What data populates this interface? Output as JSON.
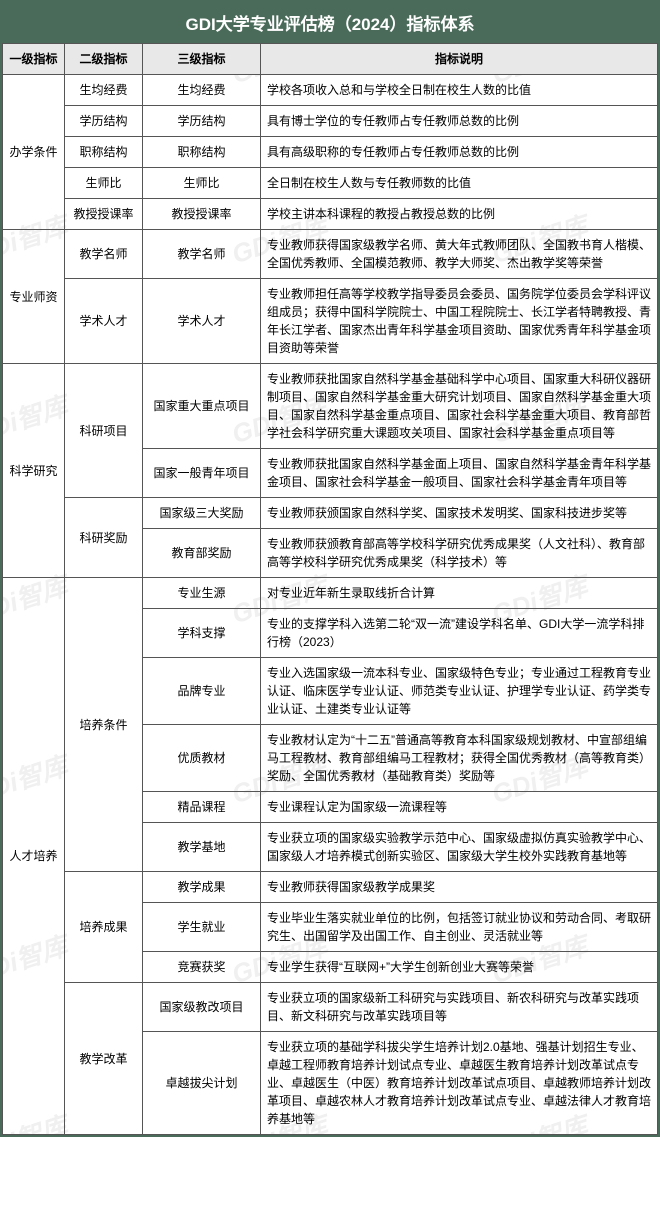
{
  "title": "GDI大学专业评估榜（2024）指标体系",
  "watermark_text": "GDi智库",
  "colors": {
    "header_bg": "#4a6b5a",
    "header_text": "#ffffff",
    "th_bg": "#e8e8e8",
    "border": "#555555",
    "watermark": "rgba(140,140,140,0.13)"
  },
  "headers": {
    "h1": "一级指标",
    "h2": "二级指标",
    "h3": "三级指标",
    "h4": "指标说明"
  },
  "rows": [
    {
      "l1": "办学条件",
      "l1_span": 5,
      "l2": "生均经费",
      "l2_span": 1,
      "l3": "生均经费",
      "desc": "学校各项收入总和与学校全日制在校生人数的比值"
    },
    {
      "l2": "学历结构",
      "l2_span": 1,
      "l3": "学历结构",
      "desc": "具有博士学位的专任教师占专任教师总数的比例"
    },
    {
      "l2": "职称结构",
      "l2_span": 1,
      "l3": "职称结构",
      "desc": "具有高级职称的专任教师占专任教师总数的比例"
    },
    {
      "l2": "生师比",
      "l2_span": 1,
      "l3": "生师比",
      "desc": "全日制在校生人数与专任教师数的比值"
    },
    {
      "l2": "教授授课率",
      "l2_span": 1,
      "l3": "教授授课率",
      "desc": "学校主讲本科课程的教授占教授总数的比例"
    },
    {
      "l1": "专业师资",
      "l1_span": 2,
      "l2": "教学名师",
      "l2_span": 1,
      "l3": "教学名师",
      "desc": "专业教师获得国家级教学名师、黄大年式教师团队、全国教书育人楷模、全国优秀教师、全国模范教师、教学大师奖、杰出教学奖等荣誉"
    },
    {
      "l2": "学术人才",
      "l2_span": 1,
      "l3": "学术人才",
      "desc": "专业教师担任高等学校教学指导委员会委员、国务院学位委员会学科评议组成员；获得中国科学院院士、中国工程院院士、长江学者特聘教授、青年长江学者、国家杰出青年科学基金项目资助、国家优秀青年科学基金项目资助等荣誉"
    },
    {
      "l1": "科学研究",
      "l1_span": 4,
      "l2": "科研项目",
      "l2_span": 2,
      "l3": "国家重大重点项目",
      "desc": "专业教师获批国家自然科学基金基础科学中心项目、国家重大科研仪器研制项目、国家自然科学基金重大研究计划项目、国家自然科学基金重大项目、国家自然科学基金重点项目、国家社会科学基金重大项目、教育部哲学社会科学研究重大课题攻关项目、国家社会科学基金重点项目等"
    },
    {
      "l3": "国家一般青年项目",
      "desc": "专业教师获批国家自然科学基金面上项目、国家自然科学基金青年科学基金项目、国家社会科学基金一般项目、国家社会科学基金青年项目等"
    },
    {
      "l2": "科研奖励",
      "l2_span": 2,
      "l3": "国家级三大奖励",
      "desc": "专业教师获颁国家自然科学奖、国家技术发明奖、国家科技进步奖等"
    },
    {
      "l3": "教育部奖励",
      "desc": "专业教师获颁教育部高等学校科学研究优秀成果奖（人文社科）、教育部高等学校科学研究优秀成果奖（科学技术）等"
    },
    {
      "l1": "人才培养",
      "l1_span": 11,
      "l2": "培养条件",
      "l2_span": 6,
      "l3": "专业生源",
      "desc": "对专业近年新生录取线折合计算"
    },
    {
      "l3": "学科支撑",
      "desc": "专业的支撑学科入选第二轮“双一流”建设学科名单、GDI大学一流学科排行榜（2023）"
    },
    {
      "l3": "品牌专业",
      "desc": "专业入选国家级一流本科专业、国家级特色专业；专业通过工程教育专业认证、临床医学专业认证、师范类专业认证、护理学专业认证、药学类专业认证、土建类专业认证等"
    },
    {
      "l3": "优质教材",
      "desc": "专业教材认定为“十二五”普通高等教育本科国家级规划教材、中宣部组编马工程教材、教育部组编马工程教材；获得全国优秀教材（高等教育类）奖励、全国优秀教材（基础教育类）奖励等"
    },
    {
      "l3": "精品课程",
      "desc": "专业课程认定为国家级一流课程等"
    },
    {
      "l3": "教学基地",
      "desc": "专业获立项的国家级实验教学示范中心、国家级虚拟仿真实验教学中心、国家级人才培养模式创新实验区、国家级大学生校外实践教育基地等"
    },
    {
      "l2": "培养成果",
      "l2_span": 3,
      "l3": "教学成果",
      "desc": "专业教师获得国家级教学成果奖"
    },
    {
      "l3": "学生就业",
      "desc": "专业毕业生落实就业单位的比例，包括签订就业协议和劳动合同、考取研究生、出国留学及出国工作、自主创业、灵活就业等"
    },
    {
      "l3": "竞赛获奖",
      "desc": "专业学生获得“互联网+”大学生创新创业大赛等荣誉"
    },
    {
      "l2": "教学改革",
      "l2_span": 2,
      "l3": "国家级教改项目",
      "desc": "专业获立项的国家级新工科研究与实践项目、新农科研究与改革实践项目、新文科研究与改革实践项目等"
    },
    {
      "l3": "卓越拔尖计划",
      "desc": "专业获立项的基础学科拔尖学生培养计划2.0基地、强基计划招生专业、卓越工程师教育培养计划试点专业、卓越医生教育培养计划改革试点专业、卓越医生（中医）教育培养计划改革试点项目、卓越教师培养计划改革项目、卓越农林人才教育培养计划改革试点专业、卓越法律人才教育培养基地等"
    }
  ]
}
